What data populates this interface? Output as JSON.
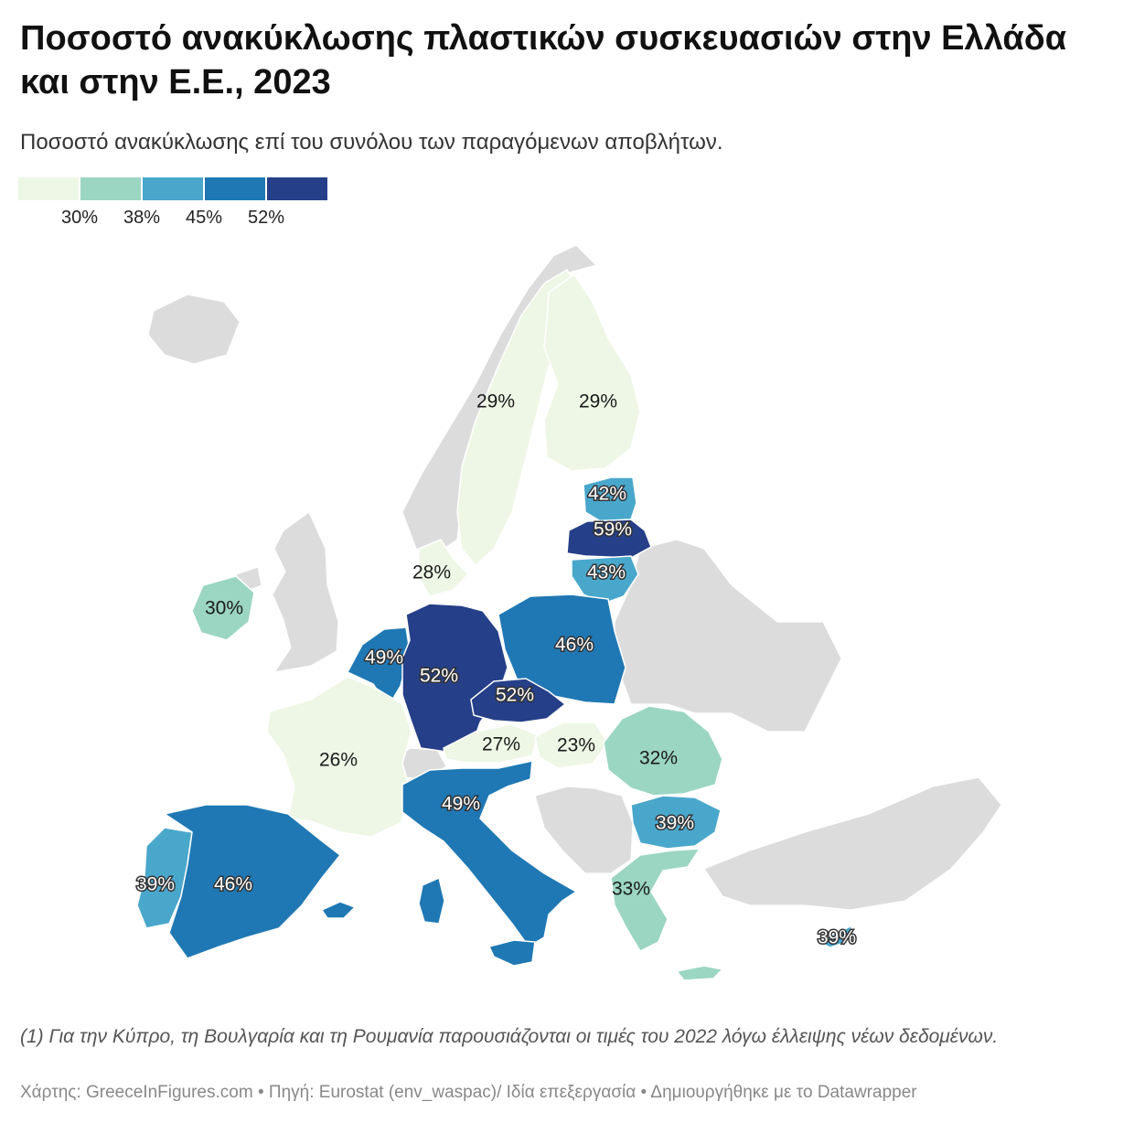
{
  "header": {
    "title": "Ποσοστό ανακύκλωσης πλαστικών συσκευασιών στην Ελλάδα και στην Ε.Ε., 2023",
    "subtitle": "Ποσοστό ανακύκλωσης επί του συνόλου των παραγόμενων αποβλήτων."
  },
  "legend": {
    "colors": [
      "#eef7e6",
      "#9bd6c2",
      "#4aa7cc",
      "#1f78b4",
      "#253f88"
    ],
    "thresholds": [
      "30%",
      "38%",
      "45%",
      "52%"
    ]
  },
  "colors": {
    "no_data": "#dcdcdc",
    "border": "#ffffff"
  },
  "map": {
    "countries": [
      {
        "name": "Sweden",
        "value": 29,
        "label": "29%"
      },
      {
        "name": "Finland",
        "value": 29,
        "label": "29%"
      },
      {
        "name": "Estonia",
        "value": 42,
        "label": "42%"
      },
      {
        "name": "Latvia",
        "value": 59,
        "label": "59%"
      },
      {
        "name": "Lithuania",
        "value": 43,
        "label": "43%"
      },
      {
        "name": "Denmark",
        "value": 28,
        "label": "28%"
      },
      {
        "name": "Ireland",
        "value": 30,
        "label": "30%"
      },
      {
        "name": "Netherlands / Belgium",
        "value": 49,
        "label": "49%"
      },
      {
        "name": "Germany",
        "value": 52,
        "label": "52%"
      },
      {
        "name": "Poland",
        "value": 46,
        "label": "46%"
      },
      {
        "name": "Czechia",
        "value": 52,
        "label": "52%"
      },
      {
        "name": "Austria",
        "value": 27,
        "label": "27%"
      },
      {
        "name": "Hungary",
        "value": 23,
        "label": "23%"
      },
      {
        "name": "Romania",
        "value": 32,
        "label": "32%"
      },
      {
        "name": "France",
        "value": 26,
        "label": "26%"
      },
      {
        "name": "Italy",
        "value": 49,
        "label": "49%"
      },
      {
        "name": "Bulgaria",
        "value": 39,
        "label": "39%"
      },
      {
        "name": "Portugal",
        "value": 39,
        "label": "39%"
      },
      {
        "name": "Spain",
        "value": 46,
        "label": "46%"
      },
      {
        "name": "Greece",
        "value": 33,
        "label": "33%"
      },
      {
        "name": "Cyprus",
        "value": 39,
        "label": "39%"
      }
    ]
  },
  "footer": {
    "note": "(1) Για την Κύπρο, τη Βουλγαρία και τη Ρουμανία παρουσιάζονται οι τιμές του 2022 λόγω έλλειψης νέων δεδομένων.",
    "source": "Χάρτης: GreeceInFigures.com • Πηγή: Eurostat (env_waspac)/ Ιδία επεξεργασία • Δημιουργήθηκε με το Datawrapper"
  }
}
